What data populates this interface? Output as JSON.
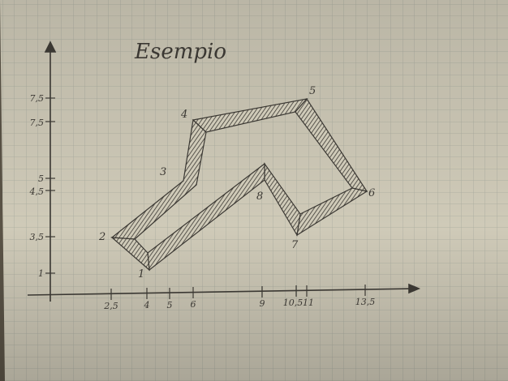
{
  "title": "Esempio",
  "colors": {
    "paper": "#cfcab8",
    "grid": "#a9ab9f",
    "ink": "#3b3833",
    "shadow": "#5a5346"
  },
  "y_ticks": [
    "1",
    "3,5",
    "4,5",
    "5",
    "7,5",
    "7,5"
  ],
  "x_ticks": [
    "2,5",
    "4",
    "5",
    "6",
    "9",
    "10,5",
    "11",
    "13,5"
  ],
  "vertices": [
    {
      "label": "1",
      "x": 4,
      "y": 1
    },
    {
      "label": "2",
      "x": 2.5,
      "y": 3.5
    },
    {
      "label": "3",
      "x": 5,
      "y": 5
    },
    {
      "label": "4",
      "x": 6,
      "y": 7.5
    },
    {
      "label": "5",
      "x": 11,
      "y": 7.5
    },
    {
      "label": "6",
      "x": 13.5,
      "y": 4.5
    },
    {
      "label": "7",
      "x": 10.5,
      "y": 3
    },
    {
      "label": "8",
      "x": 9,
      "y": 5.5
    }
  ]
}
